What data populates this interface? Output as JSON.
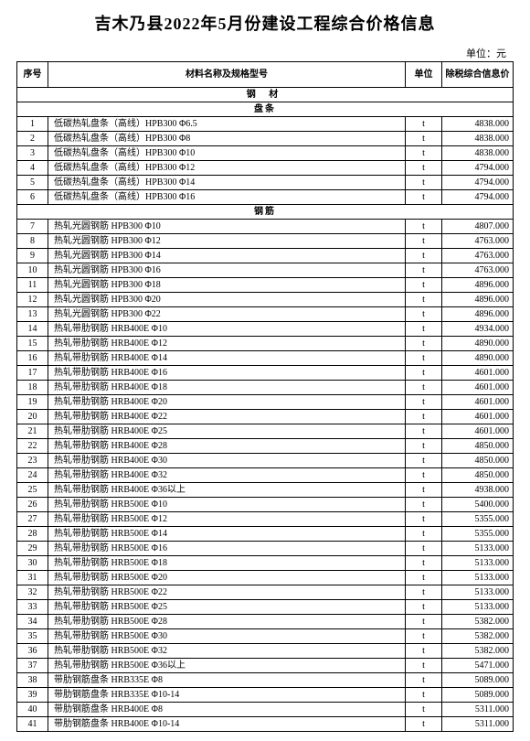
{
  "title": "吉木乃县2022年5月份建设工程综合价格信息",
  "unit_label": "单位：元",
  "columns": {
    "idx": "序号",
    "name": "材料名称及规格型号",
    "unit": "单位",
    "price": "除税综合信息价"
  },
  "section1": "钢  材",
  "sub1": "盘条",
  "sub2": "钢筋",
  "rows_a": [
    {
      "i": "1",
      "n": "低碳热轧盘条（高线）HPB300 Φ6.5",
      "u": "t",
      "p": "4838.000"
    },
    {
      "i": "2",
      "n": "低碳热轧盘条（高线）HPB300 Φ8",
      "u": "t",
      "p": "4838.000"
    },
    {
      "i": "3",
      "n": "低碳热轧盘条（高线）HPB300 Φ10",
      "u": "t",
      "p": "4838.000"
    },
    {
      "i": "4",
      "n": "低碳热轧盘条（高线）HPB300 Φ12",
      "u": "t",
      "p": "4794.000"
    },
    {
      "i": "5",
      "n": "低碳热轧盘条（高线）HPB300 Φ14",
      "u": "t",
      "p": "4794.000"
    },
    {
      "i": "6",
      "n": "低碳热轧盘条（高线）HPB300 Φ16",
      "u": "t",
      "p": "4794.000"
    }
  ],
  "rows_b": [
    {
      "i": "7",
      "n": "热轧光圆钢筋 HPB300 Φ10",
      "u": "t",
      "p": "4807.000"
    },
    {
      "i": "8",
      "n": "热轧光圆钢筋 HPB300 Φ12",
      "u": "t",
      "p": "4763.000"
    },
    {
      "i": "9",
      "n": "热轧光圆钢筋 HPB300 Φ14",
      "u": "t",
      "p": "4763.000"
    },
    {
      "i": "10",
      "n": "热轧光圆钢筋 HPB300 Φ16",
      "u": "t",
      "p": "4763.000"
    },
    {
      "i": "11",
      "n": "热轧光圆钢筋 HPB300 Φ18",
      "u": "t",
      "p": "4896.000"
    },
    {
      "i": "12",
      "n": "热轧光圆钢筋 HPB300 Φ20",
      "u": "t",
      "p": "4896.000"
    },
    {
      "i": "13",
      "n": "热轧光圆钢筋 HPB300 Φ22",
      "u": "t",
      "p": "4896.000"
    },
    {
      "i": "14",
      "n": "热轧带肋钢筋 HRB400E Φ10",
      "u": "t",
      "p": "4934.000"
    },
    {
      "i": "15",
      "n": "热轧带肋钢筋 HRB400E Φ12",
      "u": "t",
      "p": "4890.000"
    },
    {
      "i": "16",
      "n": "热轧带肋钢筋 HRB400E Φ14",
      "u": "t",
      "p": "4890.000"
    },
    {
      "i": "17",
      "n": "热轧带肋钢筋 HRB400E Φ16",
      "u": "t",
      "p": "4601.000"
    },
    {
      "i": "18",
      "n": "热轧带肋钢筋 HRB400E Φ18",
      "u": "t",
      "p": "4601.000"
    },
    {
      "i": "19",
      "n": "热轧带肋钢筋 HRB400E Φ20",
      "u": "t",
      "p": "4601.000"
    },
    {
      "i": "20",
      "n": "热轧带肋钢筋 HRB400E Φ22",
      "u": "t",
      "p": "4601.000"
    },
    {
      "i": "21",
      "n": "热轧带肋钢筋 HRB400E Φ25",
      "u": "t",
      "p": "4601.000"
    },
    {
      "i": "22",
      "n": "热轧带肋钢筋 HRB400E Φ28",
      "u": "t",
      "p": "4850.000"
    },
    {
      "i": "23",
      "n": "热轧带肋钢筋 HRB400E Φ30",
      "u": "t",
      "p": "4850.000"
    },
    {
      "i": "24",
      "n": "热轧带肋钢筋 HRB400E Φ32",
      "u": "t",
      "p": "4850.000"
    },
    {
      "i": "25",
      "n": "热轧带肋钢筋 HRB400E Φ36以上",
      "u": "t",
      "p": "4938.000"
    },
    {
      "i": "26",
      "n": "热轧带肋钢筋 HRB500E Φ10",
      "u": "t",
      "p": "5400.000"
    },
    {
      "i": "27",
      "n": "热轧带肋钢筋 HRB500E Φ12",
      "u": "t",
      "p": "5355.000"
    },
    {
      "i": "28",
      "n": "热轧带肋钢筋 HRB500E Φ14",
      "u": "t",
      "p": "5355.000"
    },
    {
      "i": "29",
      "n": "热轧带肋钢筋 HRB500E Φ16",
      "u": "t",
      "p": "5133.000"
    },
    {
      "i": "30",
      "n": "热轧带肋钢筋 HRB500E Φ18",
      "u": "t",
      "p": "5133.000"
    },
    {
      "i": "31",
      "n": "热轧带肋钢筋 HRB500E Φ20",
      "u": "t",
      "p": "5133.000"
    },
    {
      "i": "32",
      "n": "热轧带肋钢筋 HRB500E Φ22",
      "u": "t",
      "p": "5133.000"
    },
    {
      "i": "33",
      "n": "热轧带肋钢筋 HRB500E Φ25",
      "u": "t",
      "p": "5133.000"
    },
    {
      "i": "34",
      "n": "热轧带肋钢筋 HRB500E Φ28",
      "u": "t",
      "p": "5382.000"
    },
    {
      "i": "35",
      "n": "热轧带肋钢筋 HRB500E Φ30",
      "u": "t",
      "p": "5382.000"
    },
    {
      "i": "36",
      "n": "热轧带肋钢筋 HRB500E Φ32",
      "u": "t",
      "p": "5382.000"
    },
    {
      "i": "37",
      "n": "热轧带肋钢筋 HRB500E Φ36以上",
      "u": "t",
      "p": "5471.000"
    },
    {
      "i": "38",
      "n": "带肋钢筋盘条 HRB335E Φ8",
      "u": "t",
      "p": "5089.000"
    },
    {
      "i": "39",
      "n": "带肋钢筋盘条 HRB335E Φ10-14",
      "u": "t",
      "p": "5089.000"
    },
    {
      "i": "40",
      "n": "带肋钢筋盘条 HRB400E Φ8",
      "u": "t",
      "p": "5311.000"
    },
    {
      "i": "41",
      "n": "带肋钢筋盘条 HRB400E Φ10-14",
      "u": "t",
      "p": "5311.000"
    }
  ]
}
